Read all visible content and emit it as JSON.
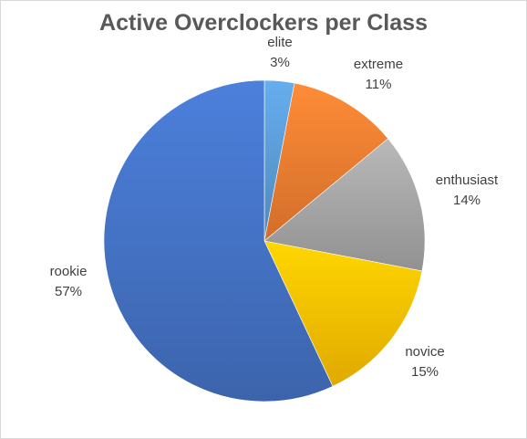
{
  "chart_data": {
    "type": "pie",
    "title": "Active Overclockers per Class",
    "slices": [
      {
        "label": "elite",
        "value": 3,
        "display": "3%",
        "color": "#5b9bd5"
      },
      {
        "label": "extreme",
        "value": 11,
        "display": "11%",
        "color": "#ed7d31"
      },
      {
        "label": "enthusiast",
        "value": 14,
        "display": "14%",
        "color": "#a5a5a5"
      },
      {
        "label": "novice",
        "value": 15,
        "display": "15%",
        "color": "#ffc000"
      },
      {
        "label": "rookie",
        "value": 57,
        "display": "57%",
        "color": "#4472c4"
      }
    ],
    "start_angle_deg": 0,
    "direction": "clockwise",
    "legend": "none",
    "data_labels": "category name and percentage, outside slices"
  }
}
